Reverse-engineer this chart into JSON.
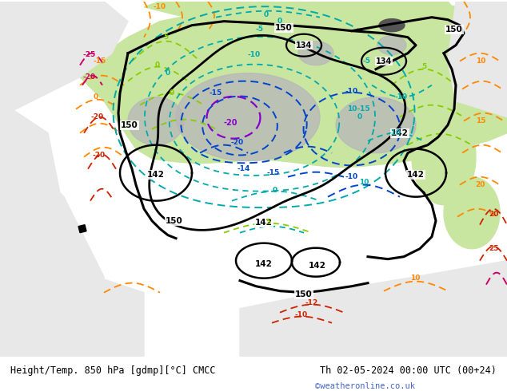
{
  "title_left": "Height/Temp. 850 hPa [gdmp][°C] CMCC",
  "title_right": "Th 02-05-2024 00:00 UTC (00+24)",
  "credit": "©weatheronline.co.uk",
  "bg_color": "#d8d8d8",
  "sea_color": "#e8e8e8",
  "land_color_light": "#c8e6a0",
  "land_color_mid": "#b8d890",
  "gray_terrain": "#b0b0b0",
  "gray_terrain2": "#c0c0c0",
  "white_sea": "#f0f0f0",
  "title_fontsize": 8.5,
  "credit_color": "#4466cc",
  "credit_fontsize": 7.5,
  "fig_width": 6.34,
  "fig_height": 4.9,
  "dpi": 100,
  "colors": {
    "black": "#000000",
    "cyan": "#00aaaa",
    "teal": "#009999",
    "blue": "#0044cc",
    "purple": "#8800cc",
    "green_yellow": "#88cc00",
    "green": "#44bb00",
    "orange": "#ff8800",
    "red": "#cc2200",
    "pink": "#cc0066",
    "magenta": "#cc0066"
  }
}
